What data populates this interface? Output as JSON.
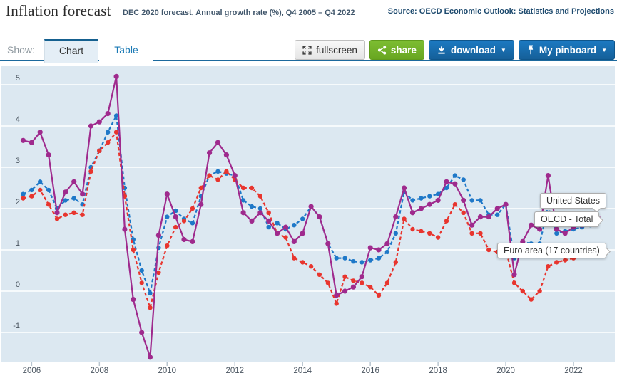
{
  "header": {
    "title": "Inflation forecast",
    "subtitle": "DEC 2020 forecast, Annual growth rate (%), Q4 2005 – Q4 2022",
    "source": "Source: OECD Economic Outlook: Statistics and Projections"
  },
  "toolbar": {
    "show_label": "Show:",
    "tabs": [
      {
        "label": "Chart",
        "active": true
      },
      {
        "label": "Table",
        "active": false
      }
    ],
    "fullscreen_label": "fullscreen",
    "share_label": "share",
    "download_label": "download",
    "pinboard_label": "My pinboard",
    "caret": "▼"
  },
  "colors": {
    "accent_blue_button": "#1a74ba",
    "share_green": "#72b42a",
    "tab_border_blue": "#15608f",
    "toolbar_line": "#1b699d",
    "plot_background": "#dce8f1",
    "gridline": "#ffffff",
    "axis_text": "#4a5560"
  },
  "chart_data": {
    "type": "line",
    "title": "Inflation forecast",
    "subtitle": "DEC 2020 forecast, Annual growth rate (%), Q4 2005 – Q4 2022",
    "ylabel": "Annual growth rate (%)",
    "xlabel": "",
    "x_start": "Q4 2005",
    "x_end": "Q4 2022",
    "frequency": "quarterly",
    "x_ticks": [
      2006,
      2008,
      2010,
      2012,
      2014,
      2016,
      2018,
      2020,
      2022
    ],
    "y_ticks": [
      5,
      4,
      3,
      2,
      1,
      0,
      -1
    ],
    "ylim": [
      -1.75,
      5.45
    ],
    "grid": true,
    "legend_position": "end-of-line tooltips",
    "plot_bg": "#dce8f1",
    "series": [
      {
        "name": "United States",
        "color": "#9f2a8d",
        "style": "solid",
        "values": [
          3.65,
          3.6,
          3.85,
          3.3,
          1.9,
          2.4,
          2.65,
          2.35,
          4.0,
          4.1,
          4.3,
          5.2,
          1.5,
          -0.2,
          -1.0,
          -1.6,
          1.35,
          2.35,
          1.8,
          1.25,
          1.2,
          2.1,
          3.35,
          3.6,
          3.3,
          2.8,
          1.9,
          1.7,
          1.9,
          1.7,
          1.4,
          1.55,
          1.2,
          1.4,
          2.05,
          1.8,
          1.15,
          -0.1,
          0.0,
          0.1,
          0.35,
          1.05,
          1.0,
          1.15,
          1.8,
          2.5,
          1.9,
          2.0,
          2.1,
          2.2,
          2.65,
          2.6,
          2.2,
          1.6,
          1.8,
          1.8,
          2.0,
          2.1,
          0.4,
          1.2,
          1.6,
          1.5,
          2.8,
          1.5,
          1.4,
          1.55,
          1.6,
          1.65,
          1.75
        ]
      },
      {
        "name": "OECD - Total",
        "color": "#1e78c8",
        "style": "dashed",
        "values": [
          2.35,
          2.45,
          2.65,
          2.45,
          2.0,
          2.2,
          2.25,
          2.1,
          3.0,
          3.4,
          3.85,
          4.25,
          2.5,
          1.25,
          0.5,
          -0.05,
          1.05,
          1.8,
          1.95,
          1.75,
          1.65,
          2.3,
          2.8,
          2.9,
          2.85,
          2.8,
          2.2,
          2.05,
          2.0,
          1.55,
          1.65,
          1.5,
          1.6,
          1.75,
          2.05,
          1.8,
          1.15,
          0.8,
          0.8,
          0.72,
          0.7,
          0.75,
          0.8,
          0.95,
          1.4,
          2.4,
          2.2,
          2.25,
          2.3,
          2.35,
          2.5,
          2.8,
          2.7,
          2.2,
          2.2,
          1.85,
          1.85,
          2.1,
          0.8,
          1.2,
          1.15,
          1.15,
          2.05,
          1.4,
          1.45,
          1.5,
          1.55,
          1.6,
          1.7
        ]
      },
      {
        "name": "Euro area (17 countries)",
        "color": "#e8352e",
        "style": "dashed",
        "values": [
          2.25,
          2.3,
          2.45,
          2.1,
          1.75,
          1.85,
          1.9,
          1.85,
          2.9,
          3.4,
          3.6,
          3.85,
          2.3,
          1.0,
          0.2,
          -0.4,
          0.45,
          1.1,
          1.55,
          1.7,
          2.0,
          2.5,
          2.8,
          2.7,
          2.9,
          2.7,
          2.5,
          2.5,
          2.3,
          1.9,
          1.4,
          1.3,
          0.8,
          0.7,
          0.6,
          0.4,
          0.2,
          -0.3,
          0.35,
          0.25,
          0.2,
          0.1,
          -0.1,
          0.2,
          0.7,
          1.75,
          1.5,
          1.45,
          1.4,
          1.3,
          1.7,
          2.1,
          1.9,
          1.4,
          1.4,
          1.0,
          0.95,
          1.0,
          0.2,
          0.0,
          -0.2,
          0.0,
          0.6,
          0.7,
          0.75,
          0.8,
          0.85,
          0.9,
          0.95
        ]
      }
    ]
  }
}
